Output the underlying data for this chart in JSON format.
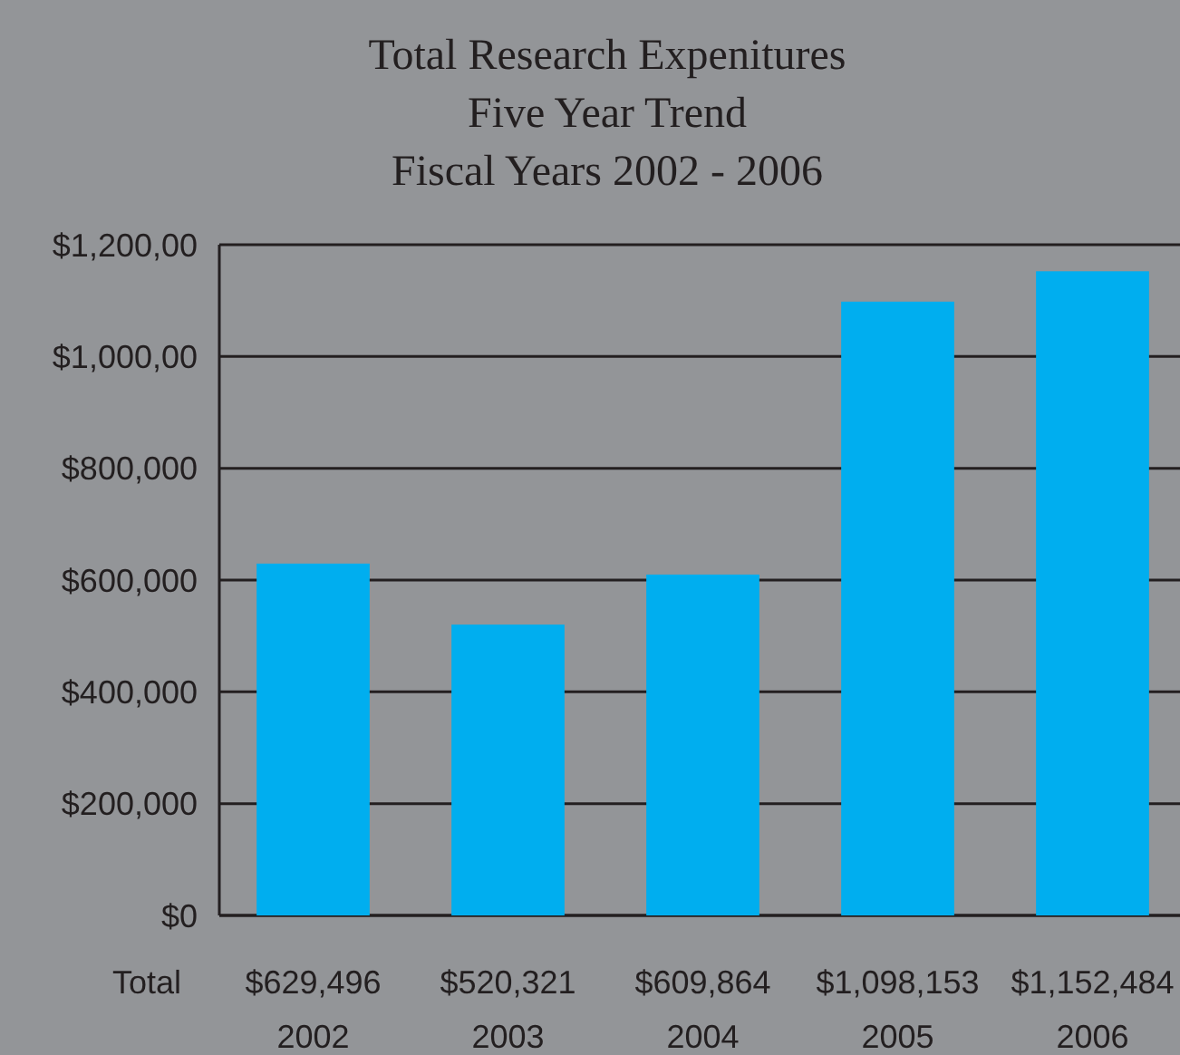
{
  "chart_data": {
    "type": "bar",
    "title": "Total Research Expenitures",
    "subtitle": "Five Year Trend\nFiscal Years 2002 - 2006",
    "categories": [
      "2002",
      "2003",
      "2004",
      "2005",
      "2006"
    ],
    "values": [
      629496,
      520321,
      609864,
      1098153,
      1152484
    ],
    "value_labels": [
      "$629,496",
      "$520,321",
      "$609,864",
      "$1,098,153",
      "$1,152,484"
    ],
    "annotations": [
      "Total"
    ],
    "color": "#00aeef",
    "ylim": [
      0,
      1200000
    ],
    "yticks": [
      {
        "value": 0,
        "label": "$0"
      },
      {
        "value": 200000,
        "label": "$200,000"
      },
      {
        "value": 400000,
        "label": "$400,000"
      },
      {
        "value": 600000,
        "label": "$600,000"
      },
      {
        "value": 800000,
        "label": "$800,000"
      },
      {
        "value": 1000000,
        "label": "$1,000,00"
      },
      {
        "value": 1200000,
        "label": "$1,200,00"
      }
    ],
    "grid": "y"
  }
}
